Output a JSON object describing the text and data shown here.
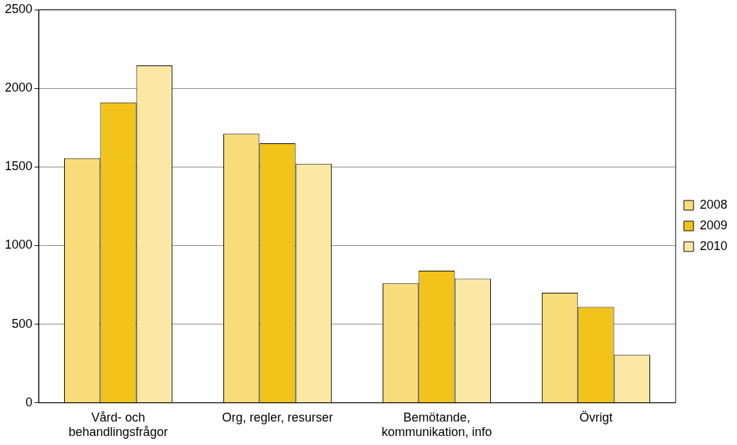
{
  "chart_data": {
    "type": "bar",
    "categories": [
      "Vård- och behandlingsfrågor",
      "Org, regler, resurser",
      "Bemötande, kommunikation, info",
      "Övrigt"
    ],
    "series": [
      {
        "name": "2008",
        "color": "#f9dc7a",
        "values": [
          1555,
          1710,
          760,
          700
        ]
      },
      {
        "name": "2009",
        "color": "#f2c31b",
        "values": [
          1910,
          1650,
          840,
          610
        ]
      },
      {
        "name": "2010",
        "color": "#fbe8a4",
        "values": [
          2145,
          1520,
          790,
          305
        ]
      }
    ],
    "ylim": [
      0,
      2500
    ],
    "yticks": [
      0,
      500,
      1000,
      1500,
      2000,
      2500
    ],
    "grid": "y",
    "legend": "right"
  }
}
